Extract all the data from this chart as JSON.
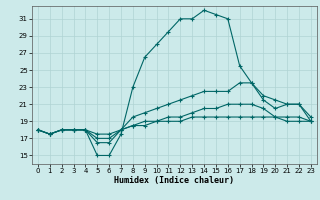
{
  "xlabel": "Humidex (Indice chaleur)",
  "bg_color": "#cceaea",
  "grid_color": "#b0d4d4",
  "line_color": "#006666",
  "xlim": [
    -0.5,
    23.5
  ],
  "ylim": [
    14.0,
    32.5
  ],
  "yticks": [
    15,
    17,
    19,
    21,
    23,
    25,
    27,
    29,
    31
  ],
  "xticks": [
    0,
    1,
    2,
    3,
    4,
    5,
    6,
    7,
    8,
    9,
    10,
    11,
    12,
    13,
    14,
    15,
    16,
    17,
    18,
    19,
    20,
    21,
    22,
    23
  ],
  "series": [
    [
      18.0,
      17.5,
      18.0,
      18.0,
      18.0,
      15.0,
      15.0,
      17.5,
      23.0,
      26.5,
      28.0,
      29.5,
      31.0,
      31.0,
      32.0,
      31.5,
      31.0,
      25.5,
      23.5,
      21.5,
      20.5,
      21.0,
      21.0,
      19.0
    ],
    [
      18.0,
      17.5,
      18.0,
      18.0,
      18.0,
      16.5,
      16.5,
      18.0,
      19.5,
      20.0,
      20.5,
      21.0,
      21.5,
      22.0,
      22.5,
      22.5,
      22.5,
      23.5,
      23.5,
      22.0,
      21.5,
      21.0,
      21.0,
      19.5
    ],
    [
      18.0,
      17.5,
      18.0,
      18.0,
      18.0,
      17.0,
      17.0,
      18.0,
      18.5,
      19.0,
      19.0,
      19.5,
      19.5,
      20.0,
      20.5,
      20.5,
      21.0,
      21.0,
      21.0,
      20.5,
      19.5,
      19.5,
      19.5,
      19.0
    ],
    [
      18.0,
      17.5,
      18.0,
      18.0,
      18.0,
      17.5,
      17.5,
      18.0,
      18.5,
      18.5,
      19.0,
      19.0,
      19.0,
      19.5,
      19.5,
      19.5,
      19.5,
      19.5,
      19.5,
      19.5,
      19.5,
      19.0,
      19.0,
      19.0
    ]
  ],
  "tick_fontsize": 5.0,
  "xlabel_fontsize": 6.0
}
